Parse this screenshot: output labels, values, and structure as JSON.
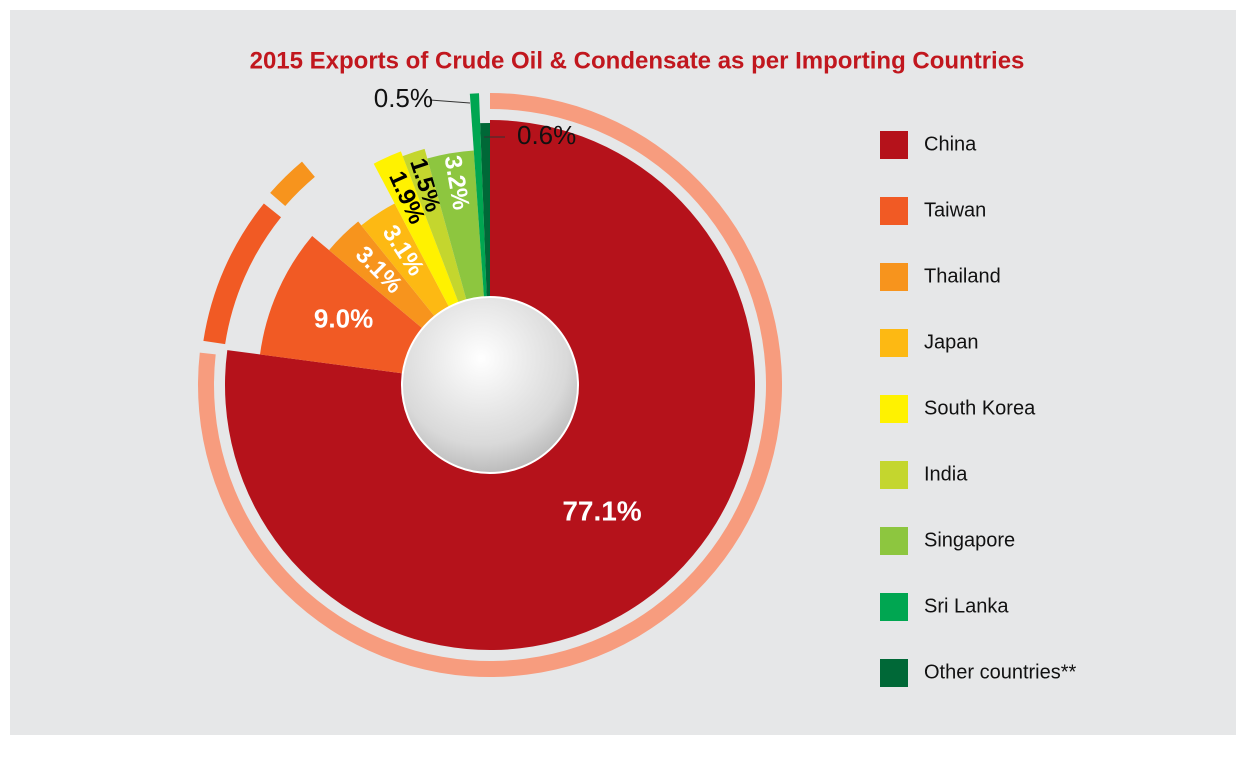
{
  "chart_data": {
    "type": "pie",
    "title": "2015 Exports of Crude Oil & Condensate as per Importing Countries",
    "categories": [
      "China",
      "Taiwan",
      "Thailand",
      "Japan",
      "South Korea",
      "India",
      "Singapore",
      "Sri Lanka",
      "Other countries**"
    ],
    "values": [
      77.1,
      9.0,
      3.1,
      3.1,
      1.9,
      1.5,
      3.2,
      0.5,
      0.6
    ],
    "value_labels": [
      "77.1%",
      "9.0%",
      "3.1%",
      "3.1%",
      "1.9%",
      "1.5%",
      "3.2%",
      "0.5%",
      "0.6%"
    ],
    "colors": [
      "#b5121b",
      "#f15a24",
      "#f7941d",
      "#fdb913",
      "#fff200",
      "#c4d62e",
      "#8dc63f",
      "#00a651",
      "#006837"
    ],
    "legend": "right"
  }
}
